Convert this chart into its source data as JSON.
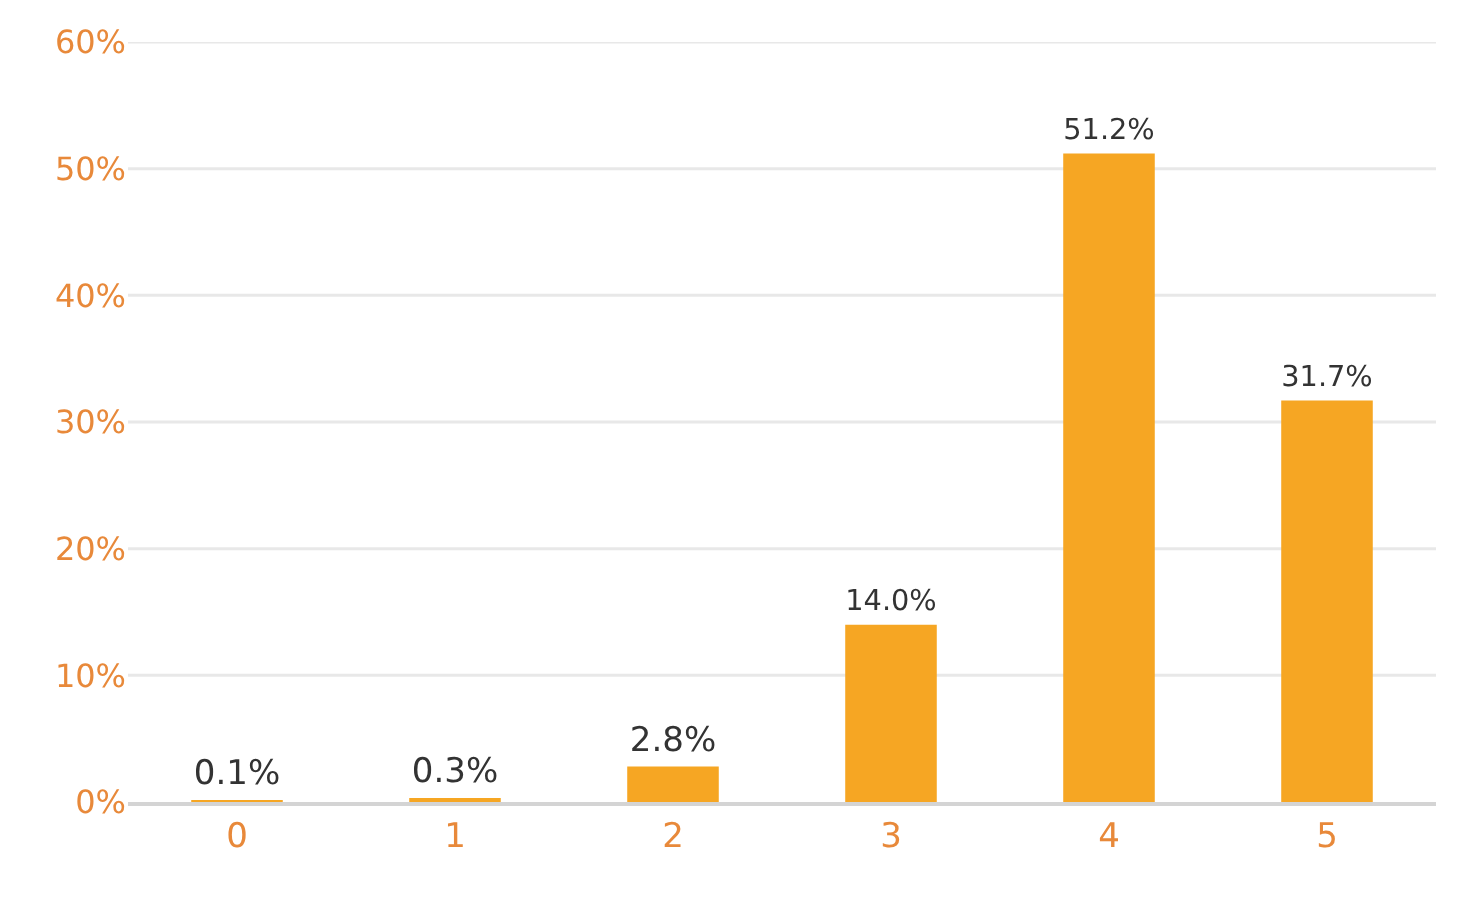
{
  "chart_data": {
    "type": "bar",
    "categories": [
      "0",
      "1",
      "2",
      "3",
      "4",
      "5"
    ],
    "values": [
      0.1,
      0.3,
      2.8,
      14.0,
      51.2,
      31.7
    ],
    "value_labels": [
      "0.1%",
      "0.3%",
      "2.8%",
      "14.0%",
      "51.2%",
      "31.7%"
    ],
    "color": "#f6a623",
    "ylim": [
      0,
      60
    ],
    "yticks": [
      {
        "value": 0,
        "label": "0%"
      },
      {
        "value": 10,
        "label": "10%"
      },
      {
        "value": 20,
        "label": "20%"
      },
      {
        "value": 30,
        "label": "30%"
      },
      {
        "value": 40,
        "label": "40%"
      },
      {
        "value": 50,
        "label": "50%"
      },
      {
        "value": 60,
        "label": "60%"
      }
    ],
    "grid": "y"
  }
}
